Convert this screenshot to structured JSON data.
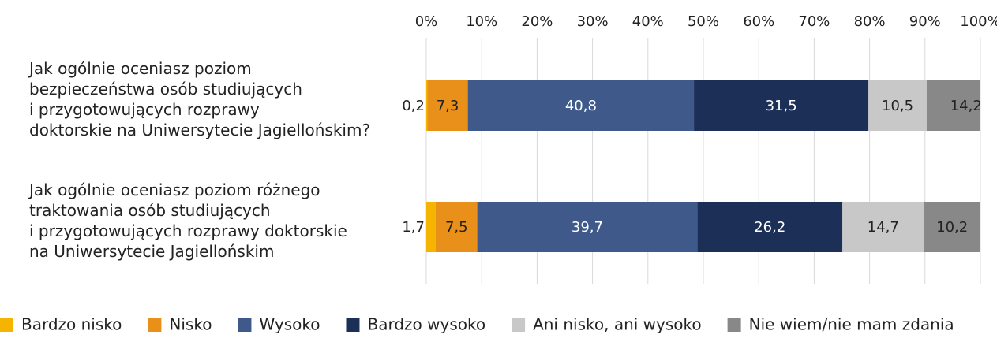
{
  "chart_data": {
    "type": "stacked-bar-horizontal",
    "categories": [
      "Jak ogólnie oceniasz poziom\nbezpieczeństwa osób studiujących\ni przygotowujących rozprawy\ndoktorskie na Uniwersytecie Jagiellońskim?",
      "Jak ogólnie oceniasz poziom różnego\ntraktowania osób studiujących\ni przygotowujących rozprawy doktorskie\nna Uniwersytecie Jagiellońskim"
    ],
    "series": [
      {
        "name": "Bardzo nisko",
        "color": "#f5b400",
        "values": [
          0.2,
          1.7
        ],
        "value_labels": [
          "0,2",
          "1,7"
        ]
      },
      {
        "name": "Nisko",
        "color": "#e8901a",
        "values": [
          7.3,
          7.5
        ],
        "value_labels": [
          "7,3",
          "7,5"
        ]
      },
      {
        "name": "Wysoko",
        "color": "#3f5a8a",
        "values": [
          40.8,
          39.7
        ],
        "value_labels": [
          "40,8",
          "39,7"
        ]
      },
      {
        "name": "Bardzo wysoko",
        "color": "#1b2f57",
        "values": [
          31.5,
          26.2
        ],
        "value_labels": [
          "31,5",
          "26,2"
        ]
      },
      {
        "name": "Ani nisko, ani wysoko",
        "color": "#c8c8c8",
        "values": [
          10.5,
          14.7
        ],
        "value_labels": [
          "10,5",
          "14,7"
        ]
      },
      {
        "name": "Nie wiem/nie mam zdania",
        "color": "#888888",
        "values": [
          14.2,
          10.2
        ],
        "value_labels": [
          "14,2",
          "10,2"
        ]
      }
    ],
    "xlim": [
      0,
      100
    ],
    "xticks": [
      {
        "value": 0,
        "label": "0%"
      },
      {
        "value": 10,
        "label": "10%"
      },
      {
        "value": 20,
        "label": "20%"
      },
      {
        "value": 30,
        "label": "30%"
      },
      {
        "value": 40,
        "label": "40%"
      },
      {
        "value": 50,
        "label": "50%"
      },
      {
        "value": 60,
        "label": "60%"
      },
      {
        "value": 70,
        "label": "70%"
      },
      {
        "value": 80,
        "label": "80%"
      },
      {
        "value": 90,
        "label": "90%"
      },
      {
        "value": 100,
        "label": "100%"
      }
    ],
    "grid": true,
    "legend": "bottom"
  }
}
